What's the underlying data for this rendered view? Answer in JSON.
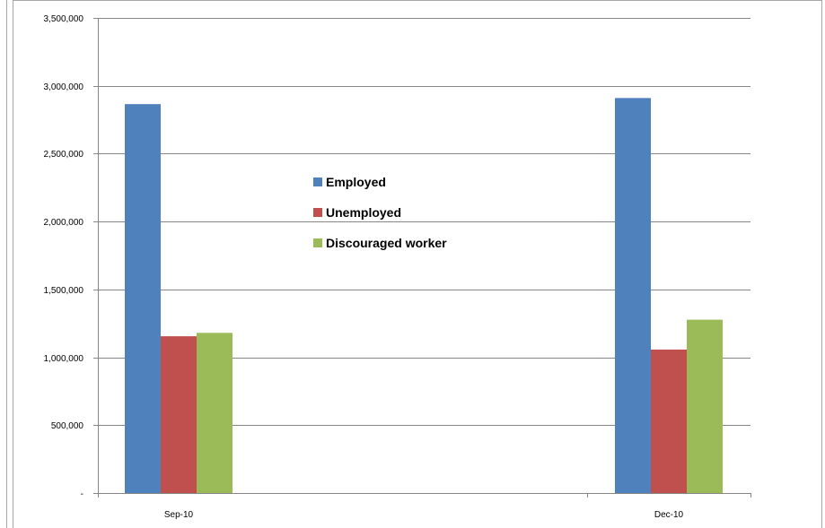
{
  "chart_data": {
    "type": "bar",
    "title": "",
    "xlabel": "",
    "ylabel": "",
    "categories": [
      "Sep-10",
      "Dec-10"
    ],
    "series": [
      {
        "name": "Employed",
        "color": "#4F81BD",
        "values": [
          2865000,
          2910000
        ]
      },
      {
        "name": "Unemployed",
        "color": "#C0504D",
        "values": [
          1155000,
          1057000
        ]
      },
      {
        "name": "Discouraged worker",
        "color": "#9BBB59",
        "values": [
          1180000,
          1277000
        ]
      }
    ],
    "ylim": [
      0,
      3500000
    ],
    "yticks": [
      0,
      500000,
      1000000,
      1500000,
      2000000,
      2500000,
      3000000,
      3500000
    ],
    "ytick_labels": [
      "-",
      "500,000",
      "1,000,000",
      "1,500,000",
      "2,000,000",
      "2,500,000",
      "3,000,000",
      "3,500,000"
    ],
    "grid": true,
    "legend_position": "center-top"
  }
}
